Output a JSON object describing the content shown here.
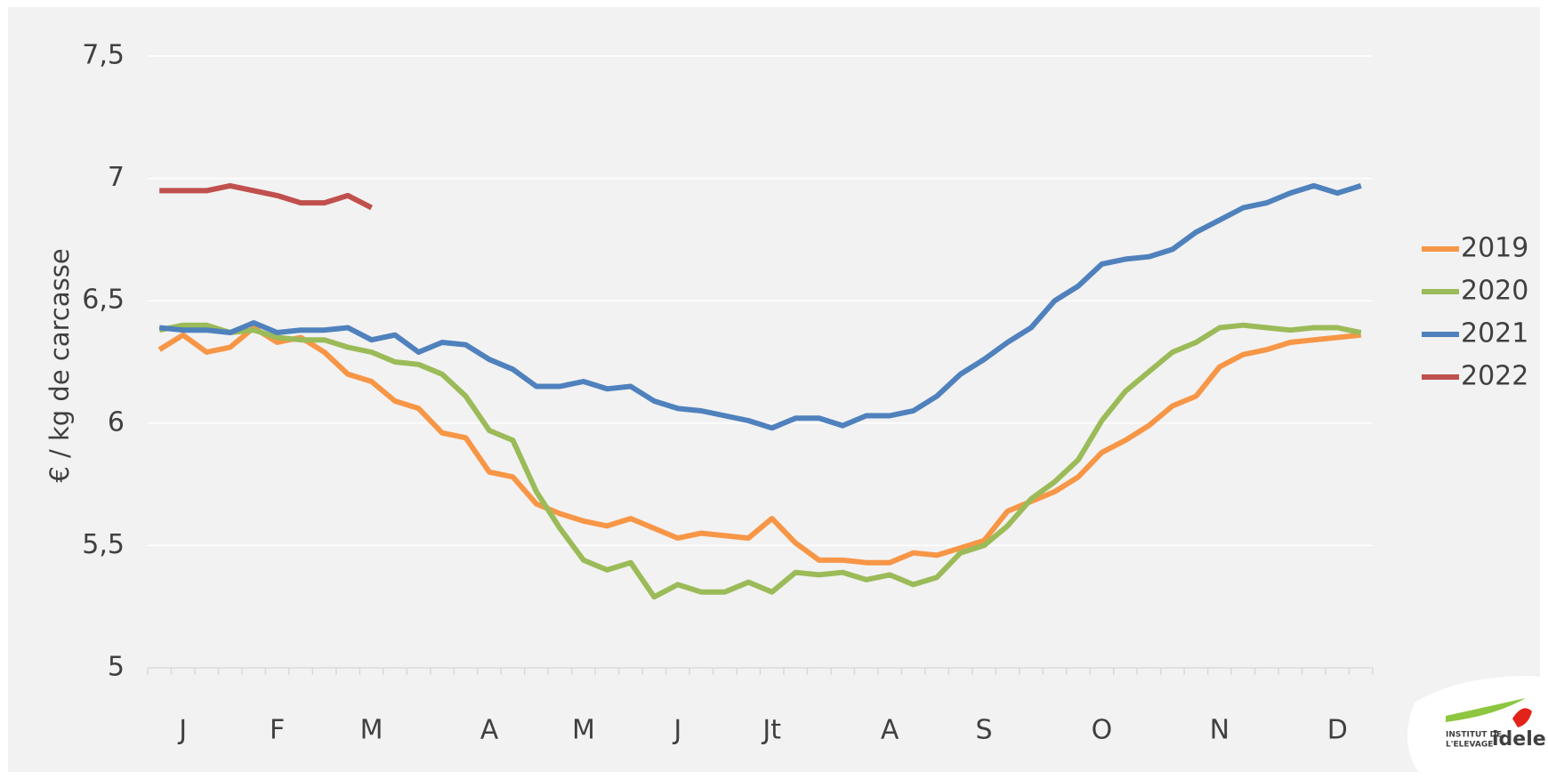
{
  "chart_data": {
    "type": "line",
    "ylabel": "€ / kg de carcasse",
    "categories": [
      null,
      "J",
      null,
      null,
      null,
      "F",
      null,
      null,
      null,
      "M",
      null,
      null,
      null,
      null,
      "A",
      null,
      null,
      null,
      "M",
      null,
      null,
      null,
      "J",
      null,
      null,
      null,
      "Jt",
      null,
      null,
      null,
      null,
      "A",
      null,
      null,
      null,
      "S",
      null,
      null,
      null,
      null,
      "O",
      null,
      null,
      null,
      null,
      "N",
      null,
      null,
      null,
      null,
      "D",
      null
    ],
    "series": [
      {
        "name": "2019",
        "color": "#f79646",
        "values": [
          6.3,
          6.36,
          6.29,
          6.31,
          6.39,
          6.33,
          6.35,
          6.29,
          6.2,
          6.17,
          6.09,
          6.06,
          5.96,
          5.94,
          5.8,
          5.78,
          5.67,
          5.63,
          5.6,
          5.58,
          5.61,
          5.57,
          5.53,
          5.55,
          5.54,
          5.53,
          5.61,
          5.51,
          5.44,
          5.44,
          5.43,
          5.43,
          5.47,
          5.46,
          5.49,
          5.52,
          5.64,
          5.68,
          5.72,
          5.78,
          5.88,
          5.93,
          5.99,
          6.07,
          6.11,
          6.23,
          6.28,
          6.3,
          6.33,
          6.34,
          6.35,
          6.36
        ]
      },
      {
        "name": "2020",
        "color": "#9bbb59",
        "values": [
          6.38,
          6.4,
          6.4,
          6.37,
          6.38,
          6.35,
          6.34,
          6.34,
          6.31,
          6.29,
          6.25,
          6.24,
          6.2,
          6.11,
          5.97,
          5.93,
          5.72,
          5.57,
          5.44,
          5.4,
          5.43,
          5.29,
          5.34,
          5.31,
          5.31,
          5.35,
          5.31,
          5.39,
          5.38,
          5.39,
          5.36,
          5.38,
          5.34,
          5.37,
          5.47,
          5.5,
          5.58,
          5.69,
          5.76,
          5.85,
          6.01,
          6.13,
          6.21,
          6.29,
          6.33,
          6.39,
          6.4,
          6.39,
          6.38,
          6.39,
          6.39,
          6.37
        ]
      },
      {
        "name": "2021",
        "color": "#4f81bd",
        "values": [
          6.39,
          6.38,
          6.38,
          6.37,
          6.41,
          6.37,
          6.38,
          6.38,
          6.39,
          6.34,
          6.36,
          6.29,
          6.33,
          6.32,
          6.26,
          6.22,
          6.15,
          6.15,
          6.17,
          6.14,
          6.15,
          6.09,
          6.06,
          6.05,
          6.03,
          6.01,
          5.98,
          6.02,
          6.02,
          5.99,
          6.03,
          6.03,
          6.05,
          6.11,
          6.2,
          6.26,
          6.33,
          6.39,
          6.5,
          6.56,
          6.65,
          6.67,
          6.68,
          6.71,
          6.78,
          6.83,
          6.88,
          6.9,
          6.94,
          6.97,
          6.94,
          6.97
        ]
      },
      {
        "name": "2022",
        "color": "#c0504d",
        "values": [
          6.95,
          6.95,
          6.95,
          6.97,
          6.95,
          6.93,
          6.9,
          6.9,
          6.93,
          6.88,
          null,
          null,
          null,
          null,
          null,
          null,
          null,
          null,
          null,
          null,
          null,
          null,
          null,
          null,
          null,
          null,
          null,
          null,
          null,
          null,
          null,
          null,
          null,
          null,
          null,
          null,
          null,
          null,
          null,
          null,
          null,
          null,
          null,
          null,
          null,
          null,
          null,
          null,
          null,
          null,
          null,
          null
        ]
      }
    ],
    "ylim": [
      5,
      7.5
    ],
    "yticks": [
      5,
      {
        "value": 5.5,
        "label": "5,5"
      },
      6,
      {
        "value": 6.5,
        "label": "6,5"
      },
      7,
      {
        "value": 7.5,
        "label": "7,5"
      }
    ],
    "grid": true,
    "legend": "right"
  },
  "logo": {
    "line1": "INSTITUT DE",
    "line2": "L'ELEVAGE",
    "name": "idele"
  }
}
